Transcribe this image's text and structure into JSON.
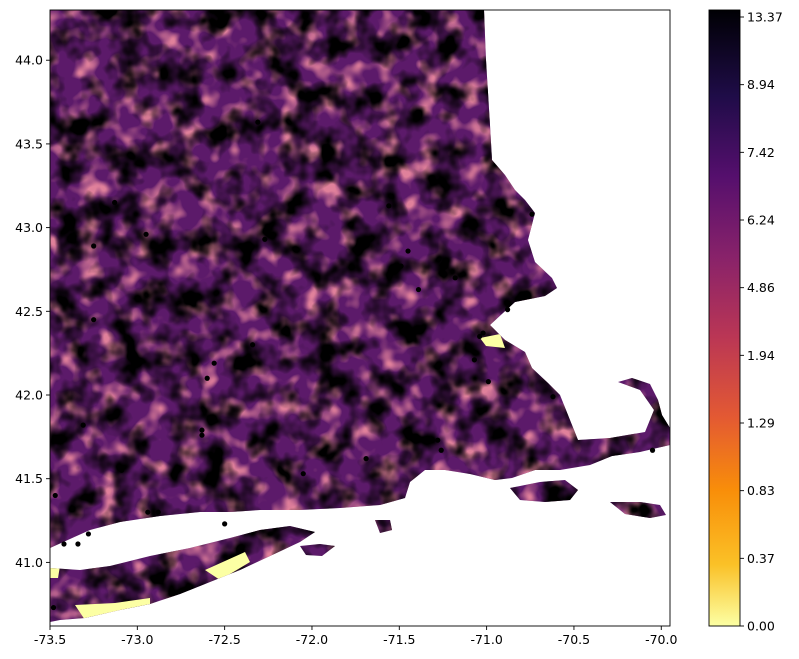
{
  "x_axis": {
    "ticks": [
      "-73.5",
      "-73.0",
      "-72.5",
      "-72.0",
      "-71.5",
      "-71.0",
      "-70.5",
      "-70.0"
    ],
    "tick_values": [
      -73.5,
      -73.0,
      -72.5,
      -72.0,
      -71.5,
      -71.0,
      -70.5,
      -70.0
    ],
    "range": [
      -73.5,
      -69.95
    ]
  },
  "y_axis": {
    "ticks": [
      "41.0",
      "41.5",
      "42.0",
      "42.5",
      "43.0",
      "43.5",
      "44.0"
    ],
    "tick_values": [
      41.0,
      41.5,
      42.0,
      42.5,
      43.0,
      43.5,
      44.0
    ],
    "range": [
      40.62,
      44.3
    ]
  },
  "colorbar": {
    "colormap": "inferno_r",
    "labels": [
      "13.37",
      "8.94",
      "7.42",
      "6.24",
      "4.86",
      "1.94",
      "1.29",
      "0.83",
      "0.37",
      "0.00"
    ],
    "colors": [
      "#000004",
      "#1f0c48",
      "#550f6d",
      "#88226a",
      "#ba3655",
      "#e35933",
      "#f98e09",
      "#fac127",
      "#fcffa4"
    ]
  },
  "stations": [
    [
      -73.47,
      41.4
    ],
    [
      -73.42,
      41.11
    ],
    [
      -73.34,
      41.11
    ],
    [
      -73.28,
      41.17
    ],
    [
      -73.25,
      42.45
    ],
    [
      -73.25,
      42.89
    ],
    [
      -73.31,
      41.82
    ],
    [
      -73.13,
      43.15
    ],
    [
      -73.09,
      41.55
    ],
    [
      -72.94,
      41.3
    ],
    [
      -72.95,
      42.96
    ],
    [
      -72.63,
      41.76
    ],
    [
      -72.63,
      41.79
    ],
    [
      -72.6,
      42.1
    ],
    [
      -72.56,
      42.19
    ],
    [
      -72.34,
      42.3
    ],
    [
      -72.31,
      43.63
    ],
    [
      -72.27,
      42.93
    ],
    [
      -72.05,
      41.53
    ],
    [
      -71.69,
      41.62
    ],
    [
      -71.56,
      43.13
    ],
    [
      -71.49,
      42.77
    ],
    [
      -71.45,
      42.86
    ],
    [
      -71.39,
      42.63
    ],
    [
      -71.28,
      41.73
    ],
    [
      -71.26,
      41.67
    ],
    [
      -71.18,
      42.7
    ],
    [
      -71.07,
      42.21
    ],
    [
      -71.04,
      42.35
    ],
    [
      -71.02,
      42.37
    ],
    [
      -70.99,
      42.08
    ],
    [
      -70.88,
      42.51
    ],
    [
      -70.74,
      43.08
    ],
    [
      -70.62,
      41.99
    ],
    [
      -70.05,
      41.67
    ],
    [
      -72.5,
      41.23
    ],
    [
      -73.48,
      40.73
    ],
    [
      -72.88,
      41.3
    ]
  ]
}
